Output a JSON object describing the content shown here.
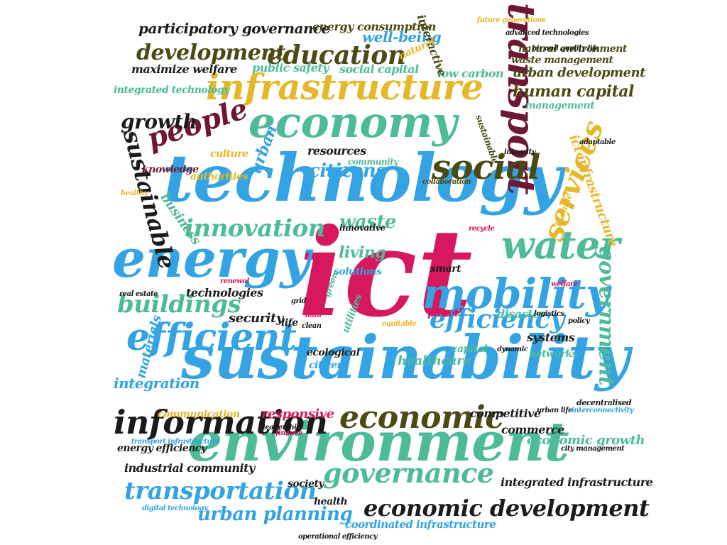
{
  "palette": {
    "blue": "#33a3e3",
    "teal": "#4dbb9a",
    "gold": "#e6b729",
    "olive": "#4b4a14",
    "maroon": "#6d1734",
    "magenta": "#d7185f",
    "black": "#1b1b1b"
  },
  "words": [
    {
      "id": "ict",
      "text": "ict",
      "color": "magenta"
    },
    {
      "id": "technology",
      "text": "technology",
      "color": "blue"
    },
    {
      "id": "sustainability",
      "text": "sustainability",
      "color": "blue"
    },
    {
      "id": "environment",
      "text": "environment",
      "color": "teal"
    },
    {
      "id": "energy",
      "text": "energy",
      "color": "blue"
    },
    {
      "id": "economy",
      "text": "economy",
      "color": "teal"
    },
    {
      "id": "infrastructure",
      "text": "infrastructure",
      "color": "gold"
    },
    {
      "id": "transport",
      "text": "transport",
      "color": "maroon"
    },
    {
      "id": "mobility",
      "text": "mobility",
      "color": "blue"
    },
    {
      "id": "water",
      "text": "water",
      "color": "teal"
    },
    {
      "id": "social",
      "text": "social",
      "color": "olive"
    },
    {
      "id": "economic",
      "text": "economic",
      "color": "olive"
    },
    {
      "id": "information",
      "text": "information",
      "color": "black"
    },
    {
      "id": "efficient",
      "text": "efficient",
      "color": "blue"
    },
    {
      "id": "people",
      "text": "people",
      "color": "maroon"
    },
    {
      "id": "education",
      "text": "education",
      "color": "olive"
    },
    {
      "id": "development",
      "text": "development",
      "color": "olive"
    },
    {
      "id": "governance",
      "text": "governance",
      "color": "teal"
    },
    {
      "id": "economic-development",
      "text": "economic development",
      "color": "black"
    },
    {
      "id": "transportation",
      "text": "transportation",
      "color": "blue"
    },
    {
      "id": "urban-planning",
      "text": "urban planning",
      "color": "blue"
    },
    {
      "id": "innovation",
      "text": "innovation",
      "color": "teal"
    },
    {
      "id": "buildings",
      "text": "buildings",
      "color": "teal"
    },
    {
      "id": "efficiency",
      "text": "efficiency",
      "color": "blue"
    },
    {
      "id": "services",
      "text": "services",
      "color": "gold"
    },
    {
      "id": "government",
      "text": "government",
      "color": "teal"
    },
    {
      "id": "sustainable",
      "text": "sustainable",
      "color": "black"
    },
    {
      "id": "growth",
      "text": "growth",
      "color": "black"
    },
    {
      "id": "citizens",
      "text": "citizens",
      "color": "blue"
    },
    {
      "id": "participatory-governance",
      "text": "participatory governance",
      "color": "black"
    },
    {
      "id": "human-capital",
      "text": "human capital",
      "color": "olive"
    },
    {
      "id": "urban-development",
      "text": "urban development",
      "color": "olive"
    },
    {
      "id": "ict-infrastructure",
      "text": "ict infrastructure",
      "color": "gold"
    },
    {
      "id": "integration",
      "text": "integration",
      "color": "blue"
    },
    {
      "id": "healthcare",
      "text": "healthcare",
      "color": "teal"
    },
    {
      "id": "waste",
      "text": "waste",
      "color": "teal"
    },
    {
      "id": "living",
      "text": "living",
      "color": "teal"
    },
    {
      "id": "resources",
      "text": "resources",
      "color": "black"
    },
    {
      "id": "security",
      "text": "security",
      "color": "black"
    },
    {
      "id": "urban",
      "text": "urban",
      "color": "blue"
    },
    {
      "id": "business",
      "text": "business",
      "color": "teal"
    },
    {
      "id": "materials",
      "text": "materials",
      "color": "blue"
    },
    {
      "id": "energy-consumption",
      "text": "energy consumption",
      "color": "olive"
    },
    {
      "id": "well-being",
      "text": "well-being",
      "color": "blue"
    },
    {
      "id": "public-safety",
      "text": "public safety",
      "color": "teal"
    },
    {
      "id": "social-capital",
      "text": "social capital",
      "color": "teal"
    },
    {
      "id": "low-carbon",
      "text": "low carbon",
      "color": "teal"
    },
    {
      "id": "maximize-welfare",
      "text": "maximize welfare",
      "color": "black"
    },
    {
      "id": "integrated-technology",
      "text": "integrated technology",
      "color": "teal"
    },
    {
      "id": "waste-management",
      "text": "waste management",
      "color": "olive"
    },
    {
      "id": "management",
      "text": "management",
      "color": "teal"
    },
    {
      "id": "natural-environment",
      "text": "natural environment",
      "color": "olive"
    },
    {
      "id": "integrated-infrastructure",
      "text": "integrated infrastructure",
      "color": "black"
    },
    {
      "id": "coordinated-infrastructure",
      "text": "coordinated infrastructure",
      "color": "blue"
    },
    {
      "id": "industrial-community",
      "text": "industrial community",
      "color": "black"
    },
    {
      "id": "energy-efficiency",
      "text": "energy efficiency",
      "color": "black"
    },
    {
      "id": "economic-growth",
      "text": "economic growth",
      "color": "teal"
    },
    {
      "id": "communication",
      "text": "communication",
      "color": "gold"
    },
    {
      "id": "responsive",
      "text": "responsive",
      "color": "magenta"
    },
    {
      "id": "competitive",
      "text": "competitive",
      "color": "black"
    },
    {
      "id": "commerce",
      "text": "commerce",
      "color": "black"
    },
    {
      "id": "technologies",
      "text": "technologies",
      "color": "black"
    },
    {
      "id": "systems",
      "text": "systems",
      "color": "black"
    },
    {
      "id": "networks",
      "text": "networks",
      "color": "teal"
    },
    {
      "id": "capital",
      "text": "capital",
      "color": "teal"
    },
    {
      "id": "disaster",
      "text": "disaster",
      "color": "teal"
    },
    {
      "id": "culture",
      "text": "culture",
      "color": "gold"
    },
    {
      "id": "knowledge",
      "text": "knowledge",
      "color": "maroon"
    },
    {
      "id": "authorities",
      "text": "authorities",
      "color": "gold"
    },
    {
      "id": "community",
      "text": "community",
      "color": "teal"
    },
    {
      "id": "ecological",
      "text": "ecological",
      "color": "black"
    },
    {
      "id": "citizen",
      "text": "citizen",
      "color": "blue"
    },
    {
      "id": "life",
      "text": "life",
      "color": "black"
    },
    {
      "id": "solutions",
      "text": "solutions",
      "color": "blue"
    },
    {
      "id": "innovative",
      "text": "innovative",
      "color": "black"
    },
    {
      "id": "society",
      "text": "society",
      "color": "black"
    },
    {
      "id": "health",
      "text": "health",
      "color": "black"
    },
    {
      "id": "smart",
      "text": "smart",
      "color": "black"
    },
    {
      "id": "power",
      "text": "power",
      "color": "magenta"
    },
    {
      "id": "interactive",
      "text": "interactive",
      "color": "olive"
    },
    {
      "id": "utilities",
      "text": "utilities",
      "color": "teal"
    },
    {
      "id": "natural",
      "text": "natural",
      "color": "gold"
    },
    {
      "id": "liveable",
      "text": "liveable",
      "color": "gold"
    },
    {
      "id": "sustainable-small",
      "text": "sustainable",
      "color": "olive"
    },
    {
      "id": "collaboration",
      "text": "collaboration",
      "color": "olive"
    },
    {
      "id": "decentralised",
      "text": "decentralised",
      "color": "black"
    },
    {
      "id": "operational-efficiency",
      "text": "operational efficiency",
      "color": "black"
    },
    {
      "id": "advanced-technologies",
      "text": "advanced technologies",
      "color": "black"
    },
    {
      "id": "air-and-quality-life",
      "text": "air and quality life",
      "color": "black"
    },
    {
      "id": "future-generations",
      "text": "future generations",
      "color": "gold"
    },
    {
      "id": "digital-technology",
      "text": "digital technology",
      "color": "blue"
    },
    {
      "id": "transport-infrastructure",
      "text": "transport infrastructure",
      "color": "blue"
    },
    {
      "id": "city-management",
      "text": "city management",
      "color": "black"
    },
    {
      "id": "urban-life",
      "text": "urban life",
      "color": "black"
    },
    {
      "id": "leadership",
      "text": "leadership",
      "color": "black"
    },
    {
      "id": "real-estate",
      "text": "real estate",
      "color": "black"
    },
    {
      "id": "policy",
      "text": "policy",
      "color": "black"
    },
    {
      "id": "logistics",
      "text": "logistics",
      "color": "black"
    },
    {
      "id": "welfare",
      "text": "welfare",
      "color": "magenta"
    },
    {
      "id": "dynamic",
      "text": "dynamic",
      "color": "black"
    },
    {
      "id": "interconnectivity",
      "text": "interconnectivity",
      "color": "blue"
    },
    {
      "id": "green",
      "text": "green",
      "color": "teal"
    },
    {
      "id": "clean",
      "text": "clean",
      "color": "black"
    },
    {
      "id": "data",
      "text": "data",
      "color": "magenta"
    },
    {
      "id": "grid",
      "text": "grid",
      "color": "black"
    },
    {
      "id": "equitable",
      "text": "equitable",
      "color": "gold"
    },
    {
      "id": "integrity",
      "text": "integrity",
      "color": "black"
    },
    {
      "id": "renewal",
      "text": "renewal",
      "color": "magenta"
    },
    {
      "id": "recycle",
      "text": "recycle",
      "color": "magenta"
    },
    {
      "id": "finance",
      "text": "finance",
      "color": "magenta"
    },
    {
      "id": "adaptable",
      "text": "adaptable",
      "color": "black"
    },
    {
      "id": "healthy",
      "text": "healthy",
      "color": "gold"
    }
  ]
}
